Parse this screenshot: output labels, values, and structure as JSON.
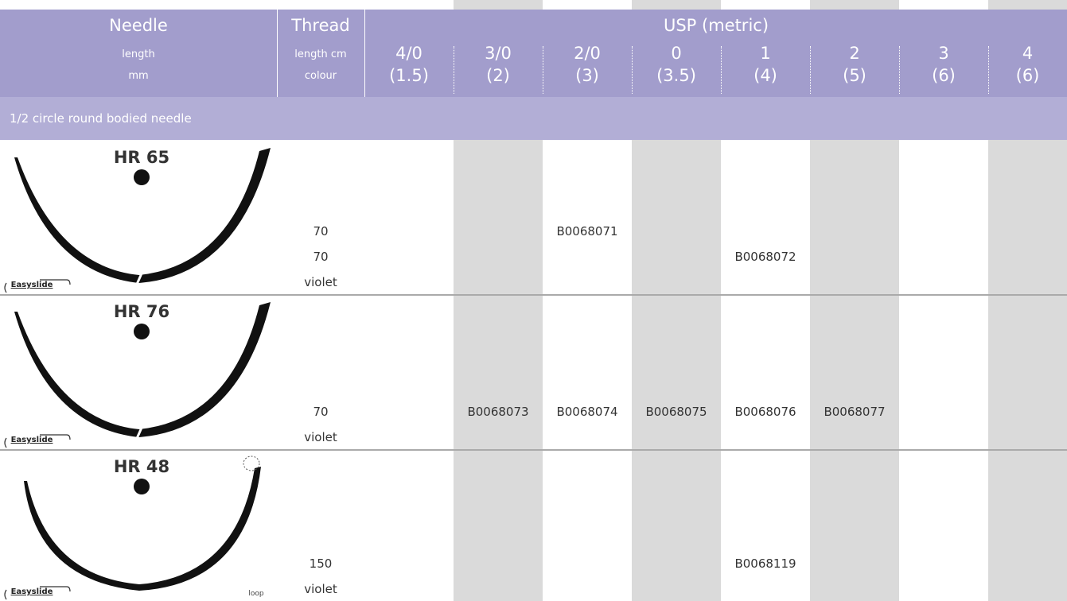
{
  "header": {
    "needle": "Needle",
    "needle_sub": [
      "length",
      "mm"
    ],
    "thread": "Thread",
    "thread_sub": [
      "length cm",
      "colour"
    ],
    "usp_title": "USP (metric)",
    "sizes": [
      {
        "size": "4/0",
        "metric": "(1.5)"
      },
      {
        "size": "3/0",
        "metric": "(2)"
      },
      {
        "size": "2/0",
        "metric": "(3)"
      },
      {
        "size": "0",
        "metric": "(3.5)"
      },
      {
        "size": "1",
        "metric": "(4)"
      },
      {
        "size": "2",
        "metric": "(5)"
      },
      {
        "size": "3",
        "metric": "(6)"
      },
      {
        "size": "4",
        "metric": "(6)"
      }
    ]
  },
  "section": "1/2 circle round bodied needle",
  "rows": [
    {
      "needle": "HR 65",
      "badge": "Easyslide",
      "thread": [
        "70",
        "70",
        "violet"
      ],
      "codes": [
        null,
        null,
        "B0068071",
        null,
        "B0068072",
        null,
        null,
        null
      ],
      "code_lines": [
        null,
        null,
        0,
        null,
        1,
        null,
        null,
        null
      ]
    },
    {
      "needle": "HR 76",
      "badge": "Easyslide",
      "thread": [
        "70",
        "violet"
      ],
      "codes": [
        null,
        "B0068073",
        "B0068074",
        "B0068075",
        "B0068076",
        "B0068077",
        null,
        null
      ],
      "code_lines": [
        null,
        0,
        0,
        0,
        0,
        0,
        null,
        null
      ]
    },
    {
      "needle": "HR 48",
      "badge": "Easyslide",
      "note": "loop",
      "thread": [
        "150",
        "violet"
      ],
      "codes": [
        null,
        null,
        null,
        null,
        "B0068119",
        null,
        null,
        null
      ],
      "code_lines": [
        null,
        null,
        null,
        null,
        0,
        null,
        null,
        null
      ]
    }
  ]
}
